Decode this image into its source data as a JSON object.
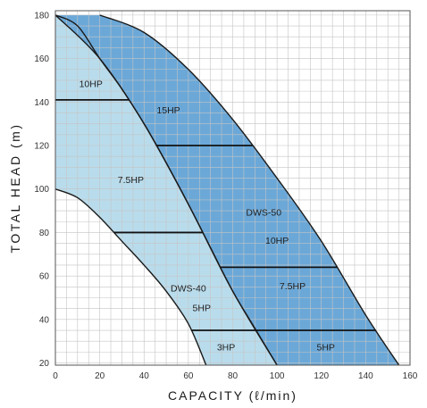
{
  "chart_data": {
    "type": "area",
    "title": "",
    "xlabel": "CAPACITY (ℓ/min)",
    "ylabel": "TOTAL HEAD (m)",
    "xlim": [
      0,
      160
    ],
    "ylim": [
      19,
      182
    ],
    "x_ticks": [
      "0",
      "20",
      "40",
      "60",
      "80",
      "100",
      "120",
      "140",
      "160"
    ],
    "y_ticks": [
      "20",
      "40",
      "60",
      "80",
      "100",
      "120",
      "140",
      "160",
      "180"
    ],
    "grid": true,
    "series": [
      {
        "name": "DWS-40",
        "color": "#b9dcec",
        "upper_curve": [
          [
            0,
            180
          ],
          [
            10,
            175
          ],
          [
            20,
            160
          ],
          [
            30,
            146
          ],
          [
            40,
            130
          ],
          [
            50,
            112
          ],
          [
            60,
            93
          ],
          [
            70,
            73
          ],
          [
            80,
            53
          ],
          [
            90,
            36
          ],
          [
            100,
            19
          ]
        ],
        "lower_curve": [
          [
            0,
            100
          ],
          [
            10,
            96
          ],
          [
            20,
            87
          ],
          [
            30,
            76
          ],
          [
            40,
            65
          ],
          [
            50,
            53
          ],
          [
            60,
            38
          ],
          [
            68,
            19
          ]
        ],
        "power_divisions": [
          {
            "head": 141,
            "label": "10HP"
          },
          {
            "head": 80,
            "label": "7.5HP"
          },
          {
            "head": 35,
            "label": "5HP"
          }
        ]
      },
      {
        "name": "DWS-50",
        "color": "#6ba8d8",
        "upper_curve": [
          [
            20,
            180
          ],
          [
            40,
            172
          ],
          [
            60,
            155
          ],
          [
            80,
            132
          ],
          [
            100,
            105
          ],
          [
            120,
            76
          ],
          [
            140,
            42
          ],
          [
            155,
            19
          ]
        ],
        "lower_curve": [
          [
            0,
            180
          ],
          [
            20,
            160
          ],
          [
            40,
            130
          ],
          [
            60,
            93
          ],
          [
            80,
            53
          ],
          [
            100,
            19
          ]
        ],
        "power_divisions": [
          {
            "head": 120,
            "label": "15HP"
          },
          {
            "head": 64,
            "label": "10HP"
          },
          {
            "head": 35,
            "label": "7.5HP"
          }
        ]
      }
    ],
    "region_labels": [
      {
        "text": "10HP",
        "x": 16,
        "head": 148
      },
      {
        "text": "7.5HP",
        "x": 34,
        "head": 104
      },
      {
        "text": "DWS-40",
        "x": 60,
        "head": 54
      },
      {
        "text": "5HP",
        "x": 66,
        "head": 45
      },
      {
        "text": "3HP",
        "x": 77,
        "head": 27
      },
      {
        "text": "15HP",
        "x": 51,
        "head": 136
      },
      {
        "text": "DWS-50",
        "x": 94,
        "head": 89
      },
      {
        "text": "10HP",
        "x": 100,
        "head": 76
      },
      {
        "text": "7.5HP",
        "x": 107,
        "head": 55
      },
      {
        "text": "5HP",
        "x": 122,
        "head": 27
      }
    ]
  }
}
